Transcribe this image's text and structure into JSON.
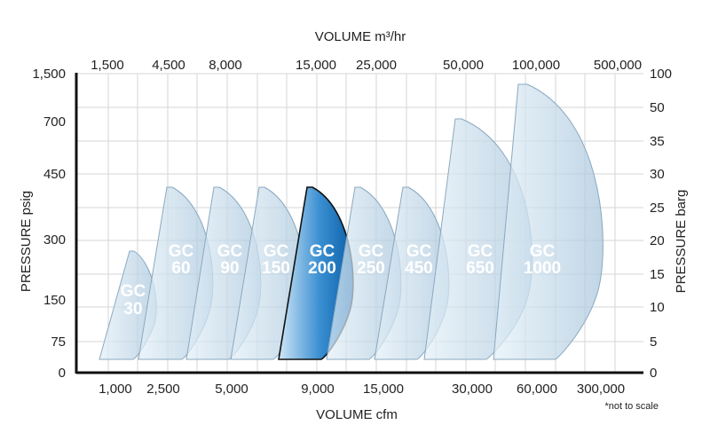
{
  "chart_data": {
    "type": "area",
    "top_axis": {
      "title": "VOLUME m³/hr",
      "ticks": [
        "1,500",
        "4,500",
        "8,000",
        "15,000",
        "25,000",
        "50,000",
        "100,000",
        "500,000"
      ]
    },
    "bottom_axis": {
      "title": "VOLUME cfm",
      "ticks": [
        "1,000",
        "2,500",
        "5,000",
        "9,000",
        "15,000",
        "30,000",
        "60,000",
        "300,000"
      ],
      "scale": "non-linear (not to scale)"
    },
    "left_axis": {
      "title": "PRESSURE psig",
      "ticks": [
        "0",
        "75",
        "150",
        "300",
        "450",
        "700",
        "1,500"
      ]
    },
    "right_axis": {
      "title": "PRESSURE barg",
      "ticks": [
        "0",
        "5",
        "10",
        "15",
        "20",
        "25",
        "30",
        "35",
        "50",
        "100"
      ]
    },
    "note": "*not to scale",
    "series": [
      {
        "name": "GC\n30",
        "label_lines": [
          "GC",
          "30"
        ],
        "max_pressure_psig": 200,
        "max_pressure_barg": 14,
        "highlighted": false
      },
      {
        "name": "GC\n60",
        "label_lines": [
          "GC",
          "60"
        ],
        "max_pressure_psig": 410,
        "max_pressure_barg": 28,
        "highlighted": false
      },
      {
        "name": "GC\n90",
        "label_lines": [
          "GC",
          "90"
        ],
        "max_pressure_psig": 410,
        "max_pressure_barg": 28,
        "highlighted": false
      },
      {
        "name": "GC\n150",
        "label_lines": [
          "GC",
          "150"
        ],
        "max_pressure_psig": 410,
        "max_pressure_barg": 28,
        "highlighted": false
      },
      {
        "name": "GC\n200",
        "label_lines": [
          "GC",
          "200"
        ],
        "max_pressure_psig": 410,
        "max_pressure_barg": 28,
        "highlighted": true
      },
      {
        "name": "GC\n250",
        "label_lines": [
          "GC",
          "250"
        ],
        "max_pressure_psig": 410,
        "max_pressure_barg": 28,
        "highlighted": false
      },
      {
        "name": "GC\n450",
        "label_lines": [
          "GC",
          "450"
        ],
        "max_pressure_psig": 410,
        "max_pressure_barg": 28,
        "highlighted": false
      },
      {
        "name": "GC\n650",
        "label_lines": [
          "GC",
          "650"
        ],
        "max_pressure_psig": 730,
        "max_pressure_barg": 50,
        "highlighted": false
      },
      {
        "name": "GC\n1000",
        "label_lines": [
          "GC",
          "1000"
        ],
        "max_pressure_psig": 1450,
        "max_pressure_barg": 100,
        "highlighted": false
      }
    ],
    "colors": {
      "region_fill": "#c2d9ea",
      "region_stroke": "#8aa8bf",
      "highlight_dark": "#0b63ad",
      "highlight_light": "#cfe6f7",
      "axis": "#111111",
      "grid": "#d6d6d6"
    }
  }
}
